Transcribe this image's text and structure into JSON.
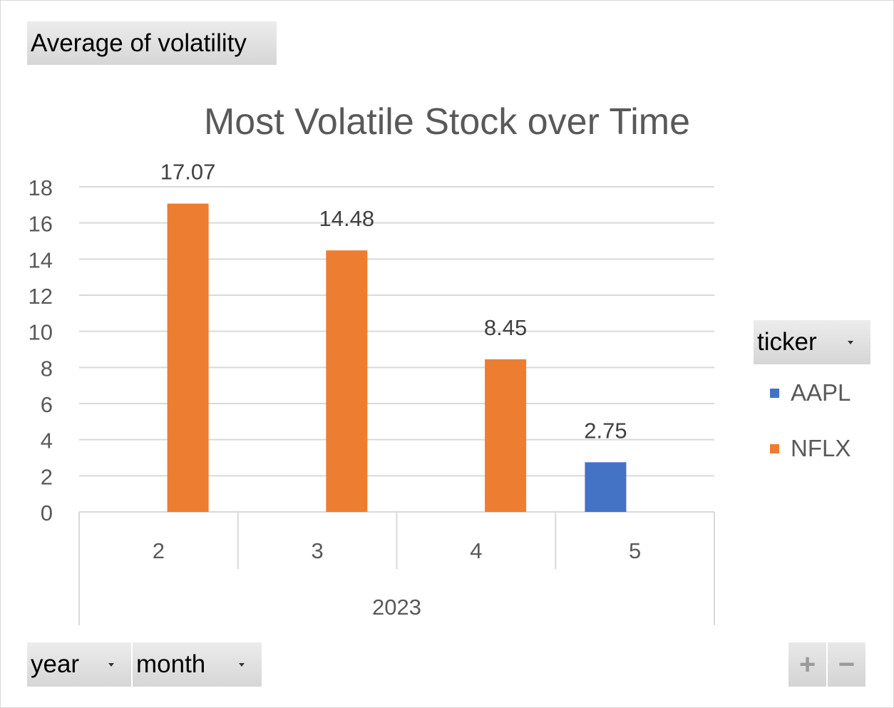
{
  "values_field": {
    "label": "Average  of volatility"
  },
  "legend_field": {
    "label": "ticker"
  },
  "axis_fields": {
    "year_label": "year",
    "month_label": "month"
  },
  "zoom": {
    "plus_label": "+",
    "minus_label": "−"
  },
  "chart_data": {
    "type": "bar",
    "title": "Most Volatile Stock over Time",
    "xlabel": "",
    "ylabel": "",
    "ylim": [
      0,
      18
    ],
    "yticks": [
      0,
      2,
      4,
      6,
      8,
      10,
      12,
      14,
      16,
      18
    ],
    "grid": true,
    "legend_position": "right",
    "categories": [
      "2",
      "3",
      "4",
      "5"
    ],
    "group_label": "2023",
    "series": [
      {
        "name": "AAPL",
        "color": "#4472c4",
        "values": [
          null,
          null,
          null,
          2.75
        ]
      },
      {
        "name": "NFLX",
        "color": "#ed7d31",
        "values": [
          17.07,
          14.48,
          8.45,
          null
        ]
      }
    ],
    "data_labels": [
      "17.07",
      "14.48",
      "8.45",
      "2.75"
    ]
  }
}
